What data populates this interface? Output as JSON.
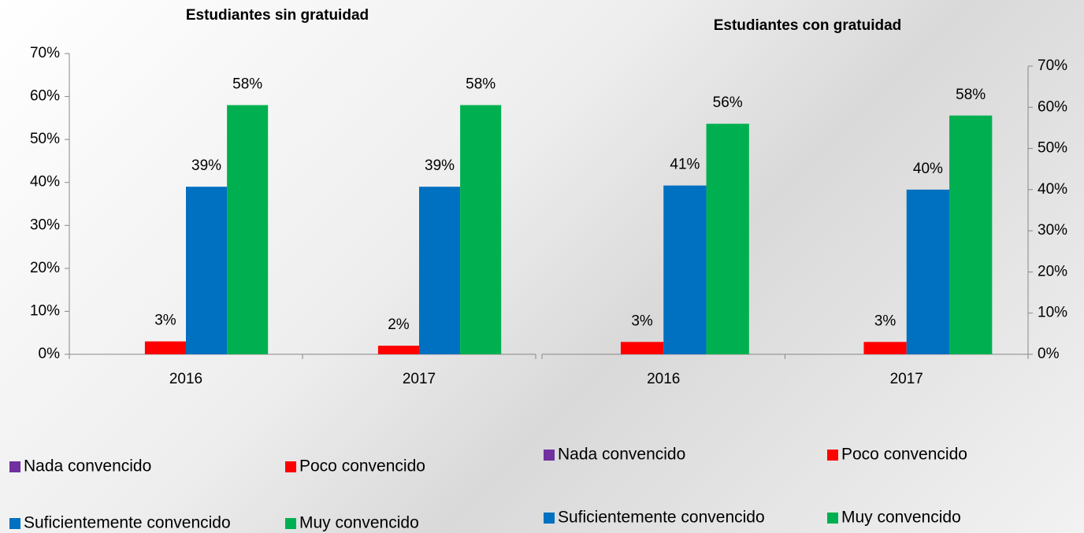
{
  "chart_data": [
    {
      "type": "bar",
      "title": "Estudiantes sin gratuidad",
      "categories": [
        "2016",
        "2017"
      ],
      "series": [
        {
          "name": "Nada convencido",
          "color": "#7030a0",
          "values": [
            0,
            0
          ]
        },
        {
          "name": "Poco convencido",
          "color": "#ff0000",
          "values": [
            3,
            2
          ],
          "value_labels": [
            "3%",
            "2%"
          ]
        },
        {
          "name": "Suficientemente convencido",
          "color": "#0070c0",
          "values": [
            39,
            39
          ],
          "value_labels": [
            "39%",
            "39%"
          ]
        },
        {
          "name": "Muy convencido",
          "color": "#00b050",
          "values": [
            58,
            58
          ],
          "value_labels": [
            "58%",
            "58%"
          ]
        }
      ],
      "ylim": [
        0,
        70
      ],
      "yticks": [
        {
          "value": 0,
          "label": "0%"
        },
        {
          "value": 10,
          "label": "10%"
        },
        {
          "value": 20,
          "label": "20%"
        },
        {
          "value": 30,
          "label": "30%"
        },
        {
          "value": 40,
          "label": "40%"
        },
        {
          "value": 50,
          "label": "50%"
        },
        {
          "value": 60,
          "label": "60%"
        },
        {
          "value": 70,
          "label": "70%"
        }
      ],
      "axis_side": "left",
      "legend": "bottom"
    },
    {
      "type": "bar",
      "title": "Estudiantes con gratuidad",
      "categories": [
        "2016",
        "2017"
      ],
      "series": [
        {
          "name": "Nada convencido",
          "color": "#7030a0",
          "values": [
            0,
            0
          ]
        },
        {
          "name": "Poco convencido",
          "color": "#ff0000",
          "values": [
            3,
            3
          ],
          "value_labels": [
            "3%",
            "3%"
          ]
        },
        {
          "name": "Suficientemente convencido",
          "color": "#0070c0",
          "values": [
            41,
            40
          ],
          "value_labels": [
            "41%",
            "40%"
          ]
        },
        {
          "name": "Muy convencido",
          "color": "#00b050",
          "values": [
            56,
            58
          ],
          "value_labels": [
            "56%",
            "58%"
          ]
        }
      ],
      "ylim": [
        0,
        70
      ],
      "yticks": [
        {
          "value": 0,
          "label": "0%"
        },
        {
          "value": 10,
          "label": "10%"
        },
        {
          "value": 20,
          "label": "20%"
        },
        {
          "value": 30,
          "label": "30%"
        },
        {
          "value": 40,
          "label": "40%"
        },
        {
          "value": 50,
          "label": "50%"
        },
        {
          "value": 60,
          "label": "60%"
        },
        {
          "value": 70,
          "label": "70%"
        }
      ],
      "axis_side": "right",
      "legend": "bottom"
    }
  ]
}
